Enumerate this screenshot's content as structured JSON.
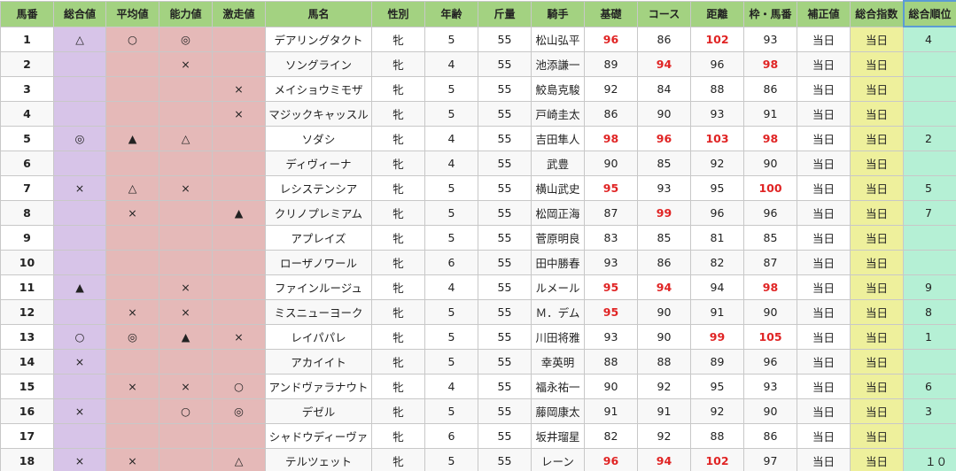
{
  "table": {
    "header": [
      "馬番",
      "総合値",
      "平均値",
      "能力値",
      "激走値",
      "馬名",
      "性別",
      "年齢",
      "斤量",
      "騎手",
      "基礎",
      "コース",
      "距離",
      "枠・馬番",
      "補正値",
      "総合指数",
      "総合順位"
    ],
    "rows": [
      [
        "1",
        "△",
        "○",
        "◎",
        null,
        "デアリングタクト",
        "牝",
        "5",
        "55",
        "松山弘平",
        {
          "text": "96",
          "color": "#e02424"
        },
        "86",
        {
          "text": "102",
          "color": "#e02424"
        },
        "93",
        "当日",
        "当日",
        "4"
      ],
      [
        "2",
        null,
        null,
        "×",
        null,
        "ソングライン",
        "牝",
        "4",
        "55",
        "池添謙一",
        "89",
        {
          "text": "94",
          "color": "#e02424"
        },
        "96",
        {
          "text": "98",
          "color": "#e02424"
        },
        "当日",
        "当日",
        null
      ],
      [
        "3",
        null,
        null,
        null,
        "×",
        "メイショウミモザ",
        "牝",
        "5",
        "55",
        "鮫島克駿",
        "92",
        "84",
        "88",
        "86",
        "当日",
        "当日",
        null
      ],
      [
        "4",
        null,
        null,
        null,
        "×",
        "マジックキャッスル",
        "牝",
        "5",
        "55",
        "戸崎圭太",
        "86",
        "90",
        "93",
        "91",
        "当日",
        "当日",
        null
      ],
      [
        "5",
        "◎",
        "▲",
        "△",
        null,
        "ソダシ",
        "牝",
        "4",
        "55",
        "吉田隼人",
        {
          "text": "98",
          "color": "#e02424"
        },
        {
          "text": "96",
          "color": "#e02424"
        },
        {
          "text": "103",
          "color": "#e02424"
        },
        {
          "text": "98",
          "color": "#e02424"
        },
        "当日",
        "当日",
        "2"
      ],
      [
        "6",
        null,
        null,
        null,
        null,
        "ディヴィーナ",
        "牝",
        "4",
        "55",
        "武豊",
        "90",
        "85",
        "92",
        "90",
        "当日",
        "当日",
        null
      ],
      [
        "7",
        "×",
        "△",
        "×",
        null,
        "レシステンシア",
        "牝",
        "5",
        "55",
        "横山武史",
        {
          "text": "95",
          "color": "#e02424"
        },
        "93",
        "95",
        {
          "text": "100",
          "color": "#e02424"
        },
        "当日",
        "当日",
        "5"
      ],
      [
        "8",
        null,
        "×",
        null,
        "▲",
        "クリノプレミアム",
        "牝",
        "5",
        "55",
        "松岡正海",
        "87",
        {
          "text": "99",
          "color": "#e02424"
        },
        "96",
        "96",
        "当日",
        "当日",
        "7"
      ],
      [
        "9",
        null,
        null,
        null,
        null,
        "アプレイズ",
        "牝",
        "5",
        "55",
        "菅原明良",
        "83",
        "85",
        "81",
        "85",
        "当日",
        "当日",
        null
      ],
      [
        "10",
        null,
        null,
        null,
        null,
        "ローザノワール",
        "牝",
        "6",
        "55",
        "田中勝春",
        "93",
        "86",
        "82",
        "87",
        "当日",
        "当日",
        null
      ],
      [
        "11",
        "▲",
        null,
        "×",
        null,
        "ファインルージュ",
        "牝",
        "4",
        "55",
        "ルメール",
        {
          "text": "95",
          "color": "#e02424"
        },
        {
          "text": "94",
          "color": "#e02424"
        },
        "94",
        {
          "text": "98",
          "color": "#e02424"
        },
        "当日",
        "当日",
        "9"
      ],
      [
        "12",
        null,
        "×",
        "×",
        null,
        "ミスニューヨーク",
        "牝",
        "5",
        "55",
        "Ｍ．デム",
        {
          "text": "95",
          "color": "#e02424"
        },
        "90",
        "91",
        "90",
        "当日",
        "当日",
        "8"
      ],
      [
        "13",
        "○",
        "◎",
        "▲",
        "×",
        "レイパパレ",
        "牝",
        "5",
        "55",
        "川田将雅",
        "93",
        "90",
        {
          "text": "99",
          "color": "#e02424"
        },
        {
          "text": "105",
          "color": "#e02424"
        },
        "当日",
        "当日",
        "1"
      ],
      [
        "14",
        "×",
        null,
        null,
        null,
        "アカイイト",
        "牝",
        "5",
        "55",
        "幸英明",
        "88",
        "88",
        "89",
        "96",
        "当日",
        "当日",
        null
      ],
      [
        "15",
        null,
        "×",
        "×",
        "○",
        "アンドヴァラナウト",
        "牝",
        "4",
        "55",
        "福永祐一",
        "90",
        "92",
        "95",
        "93",
        "当日",
        "当日",
        "6"
      ],
      [
        "16",
        "×",
        null,
        "○",
        "◎",
        "デゼル",
        "牝",
        "5",
        "55",
        "藤岡康太",
        "91",
        "91",
        "92",
        "90",
        "当日",
        "当日",
        "3"
      ],
      [
        "17",
        null,
        null,
        null,
        null,
        "シャドウディーヴァ",
        "牝",
        "6",
        "55",
        "坂井瑠星",
        "82",
        "92",
        "88",
        "86",
        "当日",
        "当日",
        null
      ],
      [
        "18",
        "×",
        "×",
        null,
        "△",
        "テルツェット",
        "牝",
        "5",
        "55",
        "レーン",
        {
          "text": "96",
          "color": "#e02424"
        },
        {
          "text": "94",
          "color": "#e02424"
        },
        {
          "text": "102",
          "color": "#e02424"
        },
        "97",
        "当日",
        "当日",
        "１０"
      ]
    ]
  }
}
